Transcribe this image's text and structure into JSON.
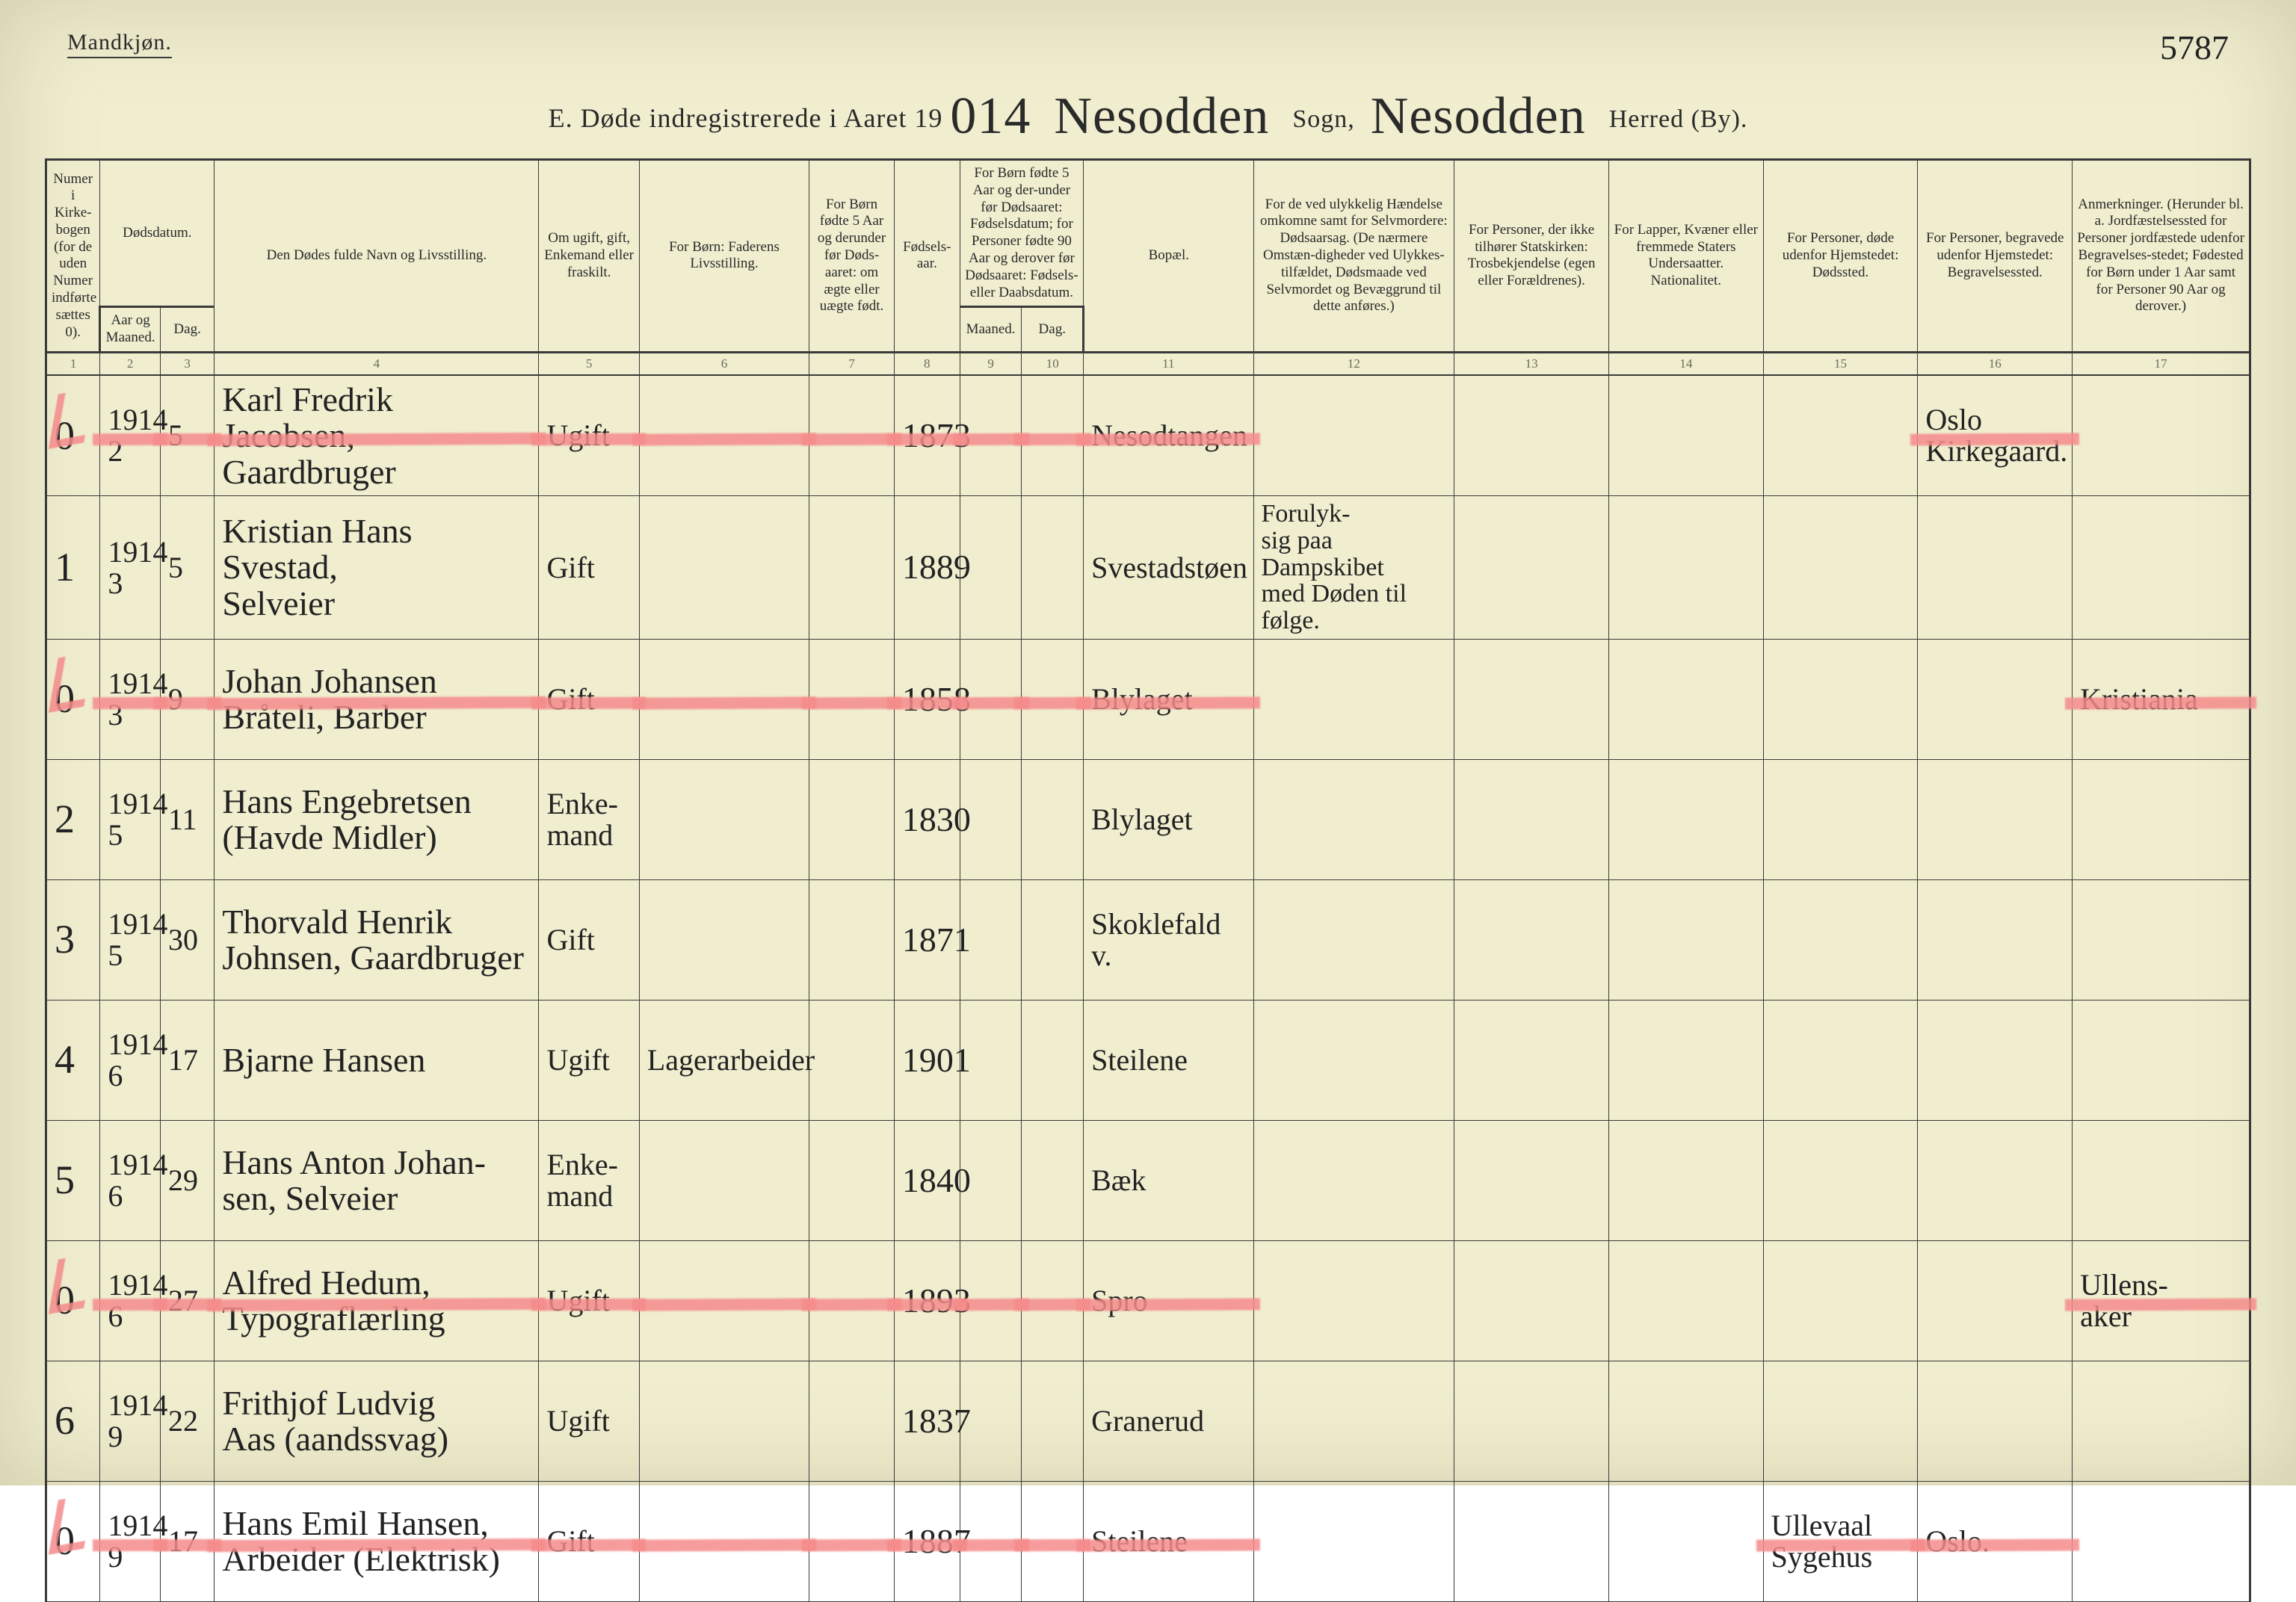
{
  "header": {
    "gender_label": "Mandkjøn.",
    "page_number_handwritten": "5787",
    "title_prefix": "E.  Døde indregistrerede i Aaret 19",
    "year_suffix": "014",
    "sogn_label": "Sogn,",
    "sogn_fill": "Nesodden",
    "herred_label": "Herred (By).",
    "herred_fill": "Nesodden"
  },
  "columns": [
    {
      "num": "1",
      "label": "Numer i Kirke-bogen (for de uden Numer indførte sættes 0)."
    },
    {
      "num": "2",
      "label": "Aar og Maaned."
    },
    {
      "num": "3",
      "label": "Dag."
    },
    {
      "group": "Dødsdatum.",
      "span": 2,
      "start": 2
    },
    {
      "num": "4",
      "label": "Den Dødes fulde Navn og Livsstilling."
    },
    {
      "num": "5",
      "label": "Om ugift, gift, Enkemand eller fraskilt."
    },
    {
      "num": "6",
      "label": "For Børn: Faderens Livsstilling."
    },
    {
      "num": "7",
      "label": "For Børn fødte 5 Aar og derunder før Døds-aaret: om ægte eller uægte født."
    },
    {
      "num": "8",
      "label": "Fødsels-aar."
    },
    {
      "num": "9",
      "label": "Maaned."
    },
    {
      "num": "10",
      "label": "Dag."
    },
    {
      "group": "For Børn fødte 5 Aar og der-under før Dødsaaret: Fødselsdatum; for Personer fødte 90 Aar og derover før Dødsaaret: Fødsels- eller Daabsdatum.",
      "span": 2,
      "start": 9
    },
    {
      "num": "11",
      "label": "Bopæl."
    },
    {
      "num": "12",
      "label": "For de ved ulykkelig Hændelse omkomne samt for Selvmordere: Dødsaarsag. (De nærmere Omstæn-digheder ved Ulykkes-tilfældet, Dødsmaade ved Selvmordet og Bevæggrund til dette anføres.)"
    },
    {
      "num": "13",
      "label": "For Personer, der ikke tilhører Statskirken: Trosbekjendelse (egen eller Forældrenes)."
    },
    {
      "num": "14",
      "label": "For Lapper, Kvæner eller fremmede Staters Undersaatter. Nationalitet."
    },
    {
      "num": "15",
      "label": "For Personer, døde udenfor Hjemstedet: Dødssted."
    },
    {
      "num": "16",
      "label": "For Personer, begravede udenfor Hjemstedet: Begravelsessted."
    },
    {
      "num": "17",
      "label": "Anmerkninger. (Herunder bl. a. Jordfæstelsessted for Personer jordfæstede udenfor Begravelses-stedet; Fødested for Børn under 1 Aar samt for Personer 90 Aar og derover.)"
    }
  ],
  "colnums": [
    "1",
    "2",
    "3",
    "4",
    "5",
    "6",
    "7",
    "8",
    "9",
    "10",
    "11",
    "12",
    "13",
    "14",
    "15",
    "16",
    "17"
  ],
  "rows": [
    {
      "num": "0",
      "red": true,
      "year": "1914",
      "month": "2",
      "day": "5",
      "name_line1": "Karl Fredrik Jacobsen,",
      "name_line2": "Gaardbruger",
      "status": "Ugift",
      "father": "",
      "c7": "",
      "birth": "1873",
      "c9": "",
      "c10": "",
      "residence": "Nesodtangen",
      "c12": "",
      "c13": "",
      "c14": "",
      "c15": "",
      "c16_line1": "Oslo",
      "c16_line2": "Kirkegaard.",
      "c17": ""
    },
    {
      "num": "1",
      "red": false,
      "year": "1914",
      "month": "3",
      "day": "5",
      "name_line1": "Kristian Hans Svestad,",
      "name_line2": "Selveier",
      "status": "Gift",
      "father": "",
      "c7": "",
      "birth": "1889",
      "c9": "",
      "c10": "",
      "residence": "Svestadstøen",
      "c12": "Forulyk-\nsig paa\nDampskibet\nmed Døden til følge.",
      "c13": "",
      "c14": "",
      "c15": "",
      "c16_line1": "",
      "c16_line2": "",
      "c17": ""
    },
    {
      "num": "0",
      "red": true,
      "year": "1914",
      "month": "3",
      "day": "9",
      "name_line1": "Johan Johansen",
      "name_line2": "Bråteli, Barber",
      "status": "Gift",
      "father": "",
      "c7": "",
      "birth": "1858",
      "c9": "",
      "c10": "",
      "residence": "Blylaget",
      "c12": "",
      "c13": "",
      "c14": "",
      "c15": "",
      "c16_line1": "",
      "c16_line2": "",
      "c17": "Kristiania"
    },
    {
      "num": "2",
      "red": false,
      "year": "1914",
      "month": "5",
      "day": "11",
      "name_line1": "Hans Engebretsen",
      "name_line2": "(Havde Midler)",
      "status": "Enke-\nmand",
      "father": "",
      "c7": "",
      "birth": "1830",
      "c9": "",
      "c10": "",
      "residence": "Blylaget",
      "c12": "",
      "c13": "",
      "c14": "",
      "c15": "",
      "c16_line1": "",
      "c16_line2": "",
      "c17": ""
    },
    {
      "num": "3",
      "red": false,
      "year": "1914",
      "month": "5",
      "day": "30",
      "name_line1": "Thorvald Henrik",
      "name_line2": "Johnsen, Gaardbruger",
      "status": "Gift",
      "father": "",
      "c7": "",
      "birth": "1871",
      "c9": "",
      "c10": "",
      "residence": "Skoklefald\nv.",
      "c12": "",
      "c13": "",
      "c14": "",
      "c15": "",
      "c16_line1": "",
      "c16_line2": "",
      "c17": ""
    },
    {
      "num": "4",
      "red": false,
      "year": "1914",
      "month": "6",
      "day": "17",
      "name_line1": "Bjarne Hansen",
      "name_line2": "",
      "status": "Ugift",
      "father": "Lagerarbeider",
      "c7": "",
      "birth": "1901",
      "c9": "",
      "c10": "",
      "residence": "Steilene",
      "c12": "",
      "c13": "",
      "c14": "",
      "c15": "",
      "c16_line1": "",
      "c16_line2": "",
      "c17": ""
    },
    {
      "num": "5",
      "red": false,
      "year": "1914",
      "month": "6",
      "day": "29",
      "name_line1": "Hans Anton Johan-",
      "name_line2": "sen, Selveier",
      "status": "Enke-\nmand",
      "father": "",
      "c7": "",
      "birth": "1840",
      "c9": "",
      "c10": "",
      "residence": "Bæk",
      "c12": "",
      "c13": "",
      "c14": "",
      "c15": "",
      "c16_line1": "",
      "c16_line2": "",
      "c17": ""
    },
    {
      "num": "0",
      "red": true,
      "year": "1914",
      "month": "6",
      "day": "27",
      "name_line1": "Alfred Hedum,",
      "name_line2": "Typograflærling",
      "status": "Ugift",
      "father": "",
      "c7": "",
      "birth": "1893",
      "c9": "",
      "c10": "",
      "residence": "Spro",
      "c12": "",
      "c13": "",
      "c14": "",
      "c15": "",
      "c16_line1": "",
      "c16_line2": "",
      "c17": "Ullens-\naker"
    },
    {
      "num": "6",
      "red": false,
      "year": "1914",
      "month": "9",
      "day": "22",
      "name_line1": "Frithjof Ludvig",
      "name_line2": "Aas  (aandssvag)",
      "status": "Ugift",
      "father": "",
      "c7": "",
      "birth": "1837",
      "c9": "",
      "c10": "",
      "residence": "Granerud",
      "c12": "",
      "c13": "",
      "c14": "",
      "c15": "",
      "c16_line1": "",
      "c16_line2": "",
      "c17": ""
    },
    {
      "num": "0",
      "red": true,
      "year": "1914",
      "month": "9",
      "day": "17",
      "name_line1": "Hans Emil Hansen,",
      "name_line2": "Arbeider (Elektrisk)",
      "status": "Gift",
      "father": "",
      "c7": "",
      "birth": "1887",
      "c9": "",
      "c10": "",
      "residence": "Steilene",
      "c12": "",
      "c13": "",
      "c14": "",
      "c15": "Ullevaal\nSygehus",
      "c16_line1": "Oslo.",
      "c16_line2": "",
      "c17": ""
    }
  ]
}
